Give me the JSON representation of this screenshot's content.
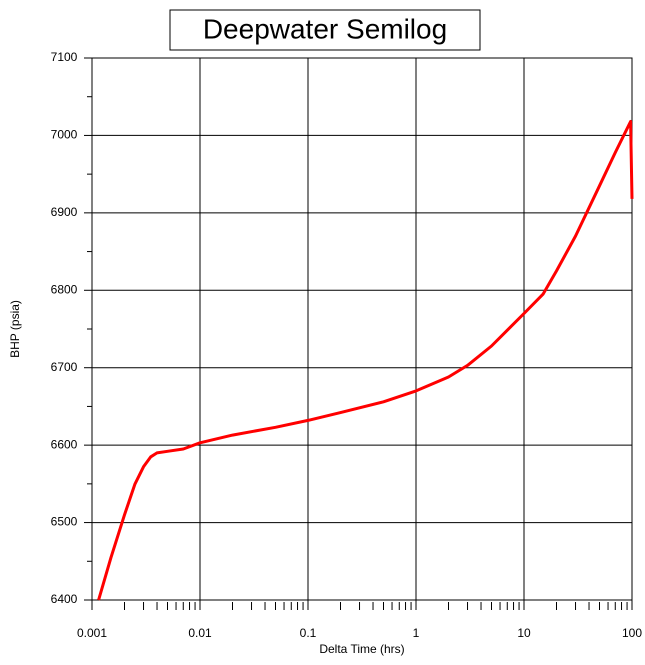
{
  "chart_data": {
    "type": "line",
    "title": "Deepwater Semilog",
    "xlabel": "Delta Time (hrs)",
    "ylabel": "BHP (psia)",
    "xscale": "log",
    "grid": true,
    "xlim": [
      0.001,
      100
    ],
    "xticks": [
      0.001,
      0.01,
      0.1,
      1,
      10,
      100
    ],
    "xminorticks": [
      0.002,
      0.003,
      0.004,
      0.005,
      0.006,
      0.007,
      0.008,
      0.009,
      0.02,
      0.03,
      0.04,
      0.05,
      0.06,
      0.07,
      0.08,
      0.09,
      0.2,
      0.3,
      0.4,
      0.5,
      0.6,
      0.7,
      0.8,
      0.9,
      2,
      3,
      4,
      5,
      6,
      7,
      8,
      9,
      20,
      30,
      40,
      50,
      60,
      70,
      80,
      90
    ],
    "ylim": [
      6400,
      7100
    ],
    "yticks": [
      6400,
      6500,
      6600,
      6700,
      6800,
      6900,
      7000,
      7100
    ],
    "yminorticks": [
      6450,
      6550,
      6650,
      6750,
      6850,
      6950,
      7050
    ],
    "series": [
      {
        "name": "BHP",
        "color": "#ff0000",
        "x": [
          0.00115,
          0.0015,
          0.002,
          0.0025,
          0.003,
          0.0035,
          0.004,
          0.005,
          0.007,
          0.01,
          0.02,
          0.05,
          0.1,
          0.2,
          0.5,
          1,
          2,
          3,
          5,
          10,
          15,
          20,
          30,
          50,
          70,
          97,
          100
        ],
        "values": [
          6400,
          6455,
          6510,
          6550,
          6572,
          6585,
          6590,
          6592,
          6595,
          6603,
          6613,
          6623,
          6632,
          6642,
          6656,
          6670,
          6688,
          6703,
          6728,
          6770,
          6795,
          6825,
          6870,
          6935,
          6978,
          7018,
          6918
        ]
      }
    ]
  }
}
